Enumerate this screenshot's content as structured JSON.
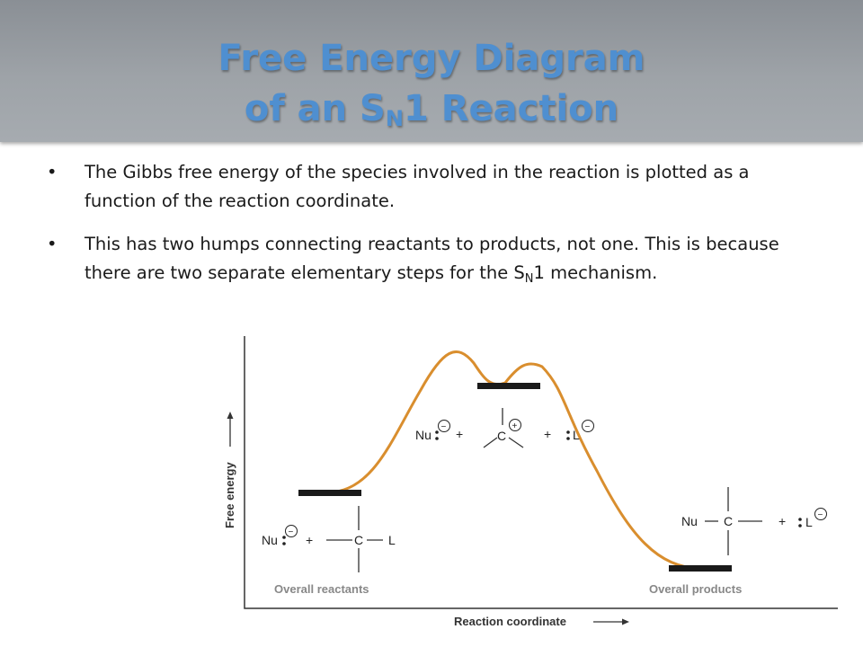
{
  "title": {
    "line1": "Free Energy Diagram",
    "line2_pre": "of an S",
    "line2_sub": "N",
    "line2_post": "1 Reaction"
  },
  "bullets": [
    {
      "text_a": "The Gibbs free energy of the species involved in the reaction is plotted as a function of the reaction coordinate."
    },
    {
      "text_a": "This has two humps connecting reactants to products, not one. This is because there are two separate elementary steps for the S",
      "sub": "N",
      "text_b": "1 mechanism."
    }
  ],
  "bullet_glyph": "•",
  "diagram": {
    "y_axis_label": "Free energy",
    "x_axis_label": "Reaction coordinate",
    "reactants_label": "Overall reactants",
    "products_label": "Overall products",
    "nu": "Nu",
    "c": "C",
    "l": "L",
    "plus": "+",
    "minus_charge": "−",
    "plus_charge": "+",
    "curve_color": "#d98e2e",
    "level_color": "#1a1a1a"
  }
}
